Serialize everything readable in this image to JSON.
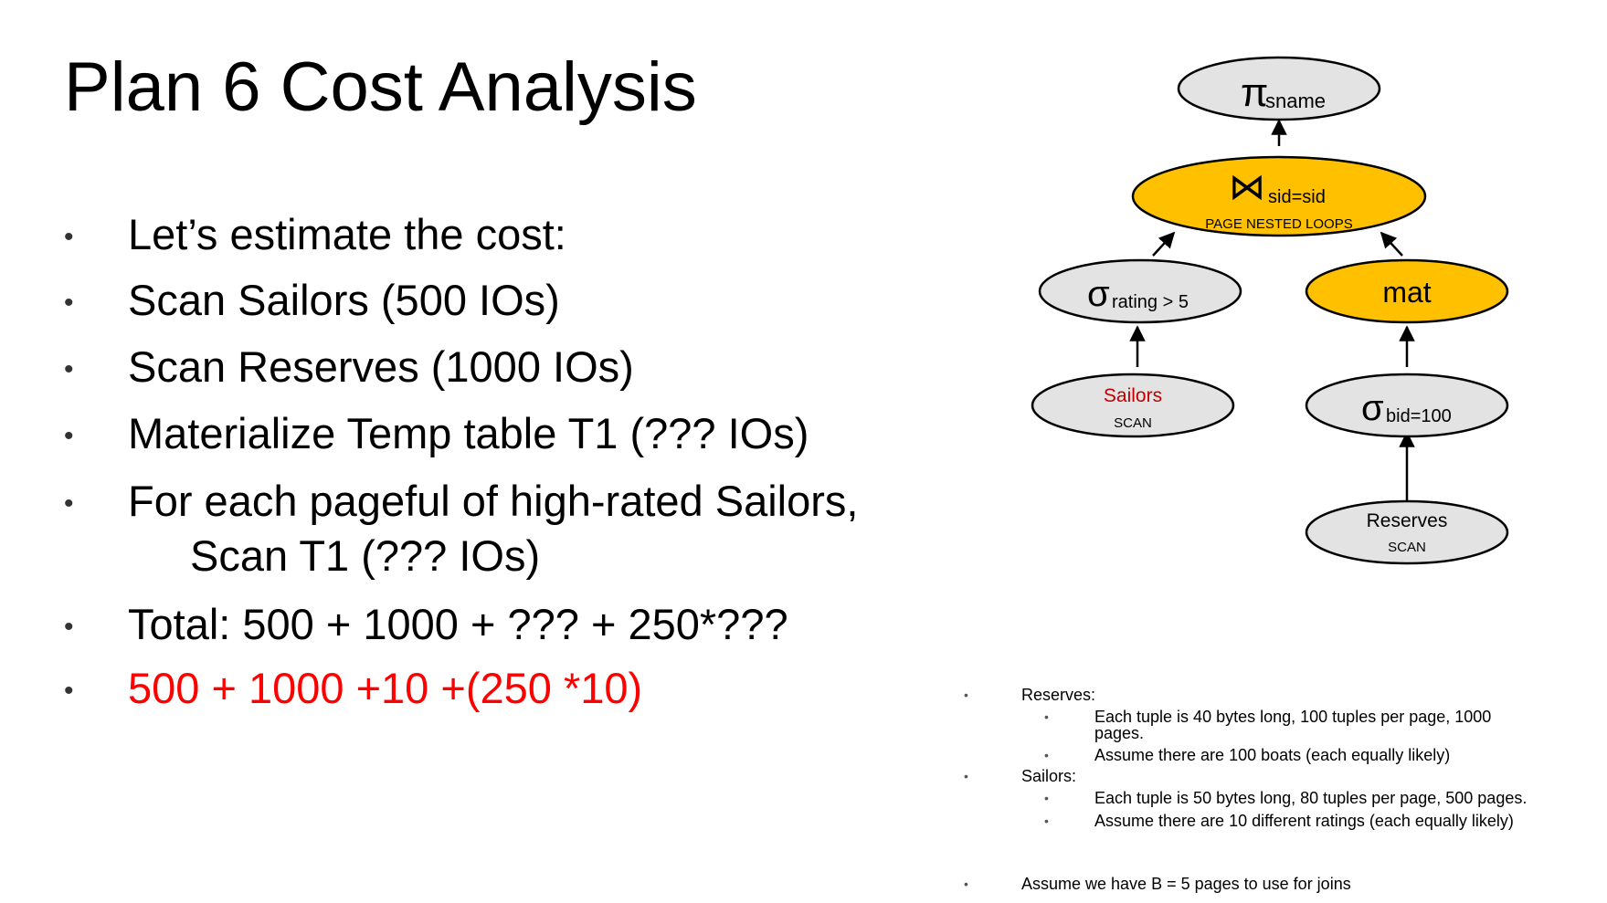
{
  "slide": {
    "title": "Plan 6 Cost Analysis"
  },
  "bullets": [
    {
      "text": "Let’s estimate the cost:"
    },
    {
      "text": "Scan Sailors (500 IOs)"
    },
    {
      "text": "Scan Reserves (1000 IOs)"
    },
    {
      "text": "Materialize Temp table T1 (??? IOs)"
    },
    {
      "text": "For each pageful of high-rated Sailors,",
      "text2": "Scan T1 (??? IOs)"
    },
    {
      "text": "Total: 500 + 1000 + ??? + 250*???"
    },
    {
      "text": "500 + 1000 +10 +(250 *10)"
    }
  ],
  "colors": {
    "highlight_red": "#ff0000",
    "operator_gold": "#ffc000",
    "node_gray": "#e3e3e3",
    "sailors_label": "#c00000"
  },
  "tree": {
    "project": {
      "symbol": "π",
      "sub": "sname"
    },
    "join": {
      "symbol": "⋈",
      "sub": "sid=sid",
      "method": "PAGE NESTED LOOPS"
    },
    "select_left": {
      "symbol": "σ",
      "sub": "rating > 5"
    },
    "mat": {
      "label": "mat"
    },
    "sailors": {
      "label": "Sailors",
      "method": "SCAN"
    },
    "select_right": {
      "symbol": "σ",
      "sub": "bid=100"
    },
    "reserves": {
      "label": "Reserves",
      "method": "SCAN"
    }
  },
  "notes": {
    "reserves_label": "Reserves:",
    "reserves_1a": "Each tuple is 40 bytes long,  100 tuples per page, 1000",
    "reserves_1b": "pages.",
    "reserves_2": "Assume there are 100 boats (each equally likely)",
    "sailors_label": "Sailors:",
    "sailors_1": "Each tuple is 50 bytes long,  80 tuples per page, 500 pages.",
    "sailors_2": "Assume there are 10 different ratings (each equally likely)",
    "joins": "Assume we have B = 5 pages to use for joins"
  }
}
